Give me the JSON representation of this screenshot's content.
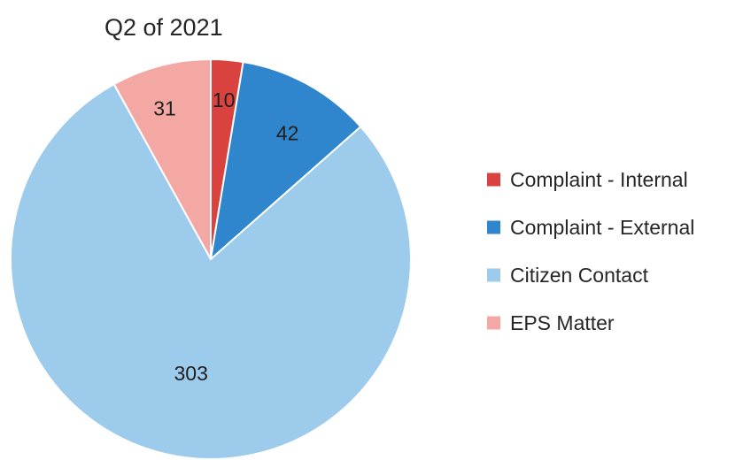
{
  "chart_data": {
    "type": "pie",
    "title": "Q2 of 2021",
    "categories": [
      "Complaint - Internal",
      "Complaint - External",
      "Citizen Contact",
      "EPS Matter"
    ],
    "values": [
      10,
      42,
      303,
      31
    ],
    "colors": [
      "#d9423f",
      "#2f86cc",
      "#9dcbec",
      "#f3a8a4"
    ],
    "data_labels": [
      "10",
      "42",
      "303",
      "31"
    ],
    "legend_position": "right",
    "start_angle": "12 o'clock",
    "direction": "clockwise"
  }
}
